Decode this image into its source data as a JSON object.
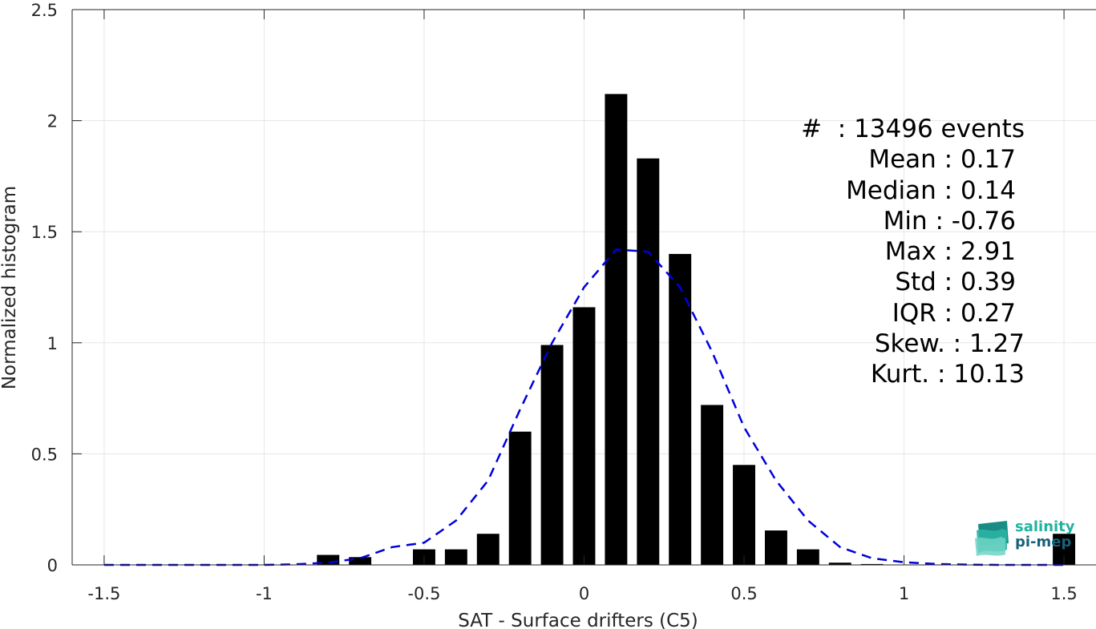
{
  "chart_data": {
    "type": "bar",
    "xlabel": "SAT - Surface drifters (C5)",
    "ylabel": "Normalized histogram",
    "xlim": [
      -1.6,
      1.6
    ],
    "ylim": [
      0,
      2.5
    ],
    "xticks": [
      "-1.5",
      "-1",
      "-0.5",
      "0",
      "0.5",
      "1",
      "1.5"
    ],
    "xtick_values": [
      -1.5,
      -1,
      -0.5,
      0,
      0.5,
      1,
      1.5
    ],
    "yticks": [
      "0",
      "0.5",
      "1",
      "1.5",
      "2",
      "2.5"
    ],
    "ytick_values": [
      0,
      0.5,
      1,
      1.5,
      2,
      2.5
    ],
    "grid": true,
    "bar_width": 0.07,
    "bar_color": "#000000",
    "bars": [
      {
        "x": -0.8,
        "y": 0.045
      },
      {
        "x": -0.7,
        "y": 0.035
      },
      {
        "x": -0.5,
        "y": 0.07
      },
      {
        "x": -0.4,
        "y": 0.07
      },
      {
        "x": -0.3,
        "y": 0.14
      },
      {
        "x": -0.2,
        "y": 0.6
      },
      {
        "x": -0.1,
        "y": 0.99
      },
      {
        "x": 0.0,
        "y": 1.16
      },
      {
        "x": 0.1,
        "y": 2.12
      },
      {
        "x": 0.2,
        "y": 1.83
      },
      {
        "x": 0.3,
        "y": 1.4
      },
      {
        "x": 0.4,
        "y": 0.72
      },
      {
        "x": 0.5,
        "y": 0.45
      },
      {
        "x": 0.6,
        "y": 0.155
      },
      {
        "x": 0.7,
        "y": 0.07
      },
      {
        "x": 0.8,
        "y": 0.01
      },
      {
        "x": 0.9,
        "y": 0.004
      },
      {
        "x": 1.5,
        "y": 0.14
      }
    ],
    "fit_curve": {
      "color": "#0000dd",
      "style": "dashed",
      "x": [
        -1.5,
        -1.4,
        -1.3,
        -1.2,
        -1.1,
        -1.0,
        -0.9,
        -0.8,
        -0.7,
        -0.6,
        -0.5,
        -0.4,
        -0.3,
        -0.2,
        -0.1,
        0.0,
        0.1,
        0.2,
        0.3,
        0.4,
        0.5,
        0.6,
        0.7,
        0.8,
        0.9,
        1.0,
        1.1,
        1.2,
        1.3,
        1.4,
        1.5
      ],
      "y": [
        0.0,
        0.0,
        0.0,
        0.0,
        0.0,
        0.0,
        0.003,
        0.01,
        0.03,
        0.08,
        0.1,
        0.2,
        0.38,
        0.7,
        1.0,
        1.25,
        1.42,
        1.41,
        1.25,
        0.96,
        0.62,
        0.38,
        0.2,
        0.08,
        0.03,
        0.012,
        0.004,
        0.001,
        0.0,
        0.0,
        0.0
      ]
    },
    "stats": [
      "#  : 13496 events",
      "Mean : 0.17",
      "Median : 0.14",
      "Min : -0.76",
      "Max : 2.91",
      "Std : 0.39",
      "IQR : 0.27",
      "Skew. : 1.27",
      "Kurt. : 10.13"
    ]
  },
  "logo": {
    "line1": "salinity",
    "line2": "pi-mep",
    "icon": "wave-layers-icon"
  }
}
